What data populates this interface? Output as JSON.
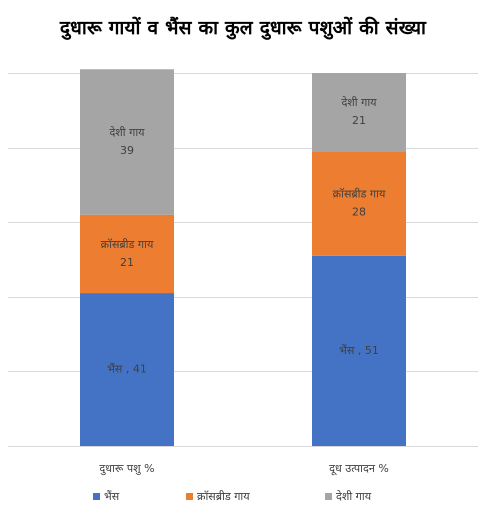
{
  "chart_data": {
    "type": "bar",
    "stacked": true,
    "title": "दुधारू गायों व भैंस का कुल दुधारू पशुओं की संख्या",
    "categories": [
      "दुधारू पशु %",
      "दूध उत्पादन %"
    ],
    "series": [
      {
        "name": "भैंस",
        "values": [
          41,
          51
        ],
        "color": "#4472C4",
        "labels": [
          "भैंस , 41",
          "भैंस , 51"
        ]
      },
      {
        "name": "क्रॉसब्रीड गाय",
        "values": [
          21,
          28
        ],
        "color": "#ED7D31",
        "labels": [
          "क्रॉसब्रीड गाय 21",
          "क्रॉसब्रीड गाय 28"
        ]
      },
      {
        "name": "देशी गाय",
        "values": [
          39,
          21
        ],
        "color": "#A5A5A5",
        "labels": [
          "देशी गाय 39",
          "देशी गाय 21"
        ]
      }
    ],
    "ylim": [
      0,
      100
    ],
    "grid": true,
    "legend_position": "bottom"
  }
}
